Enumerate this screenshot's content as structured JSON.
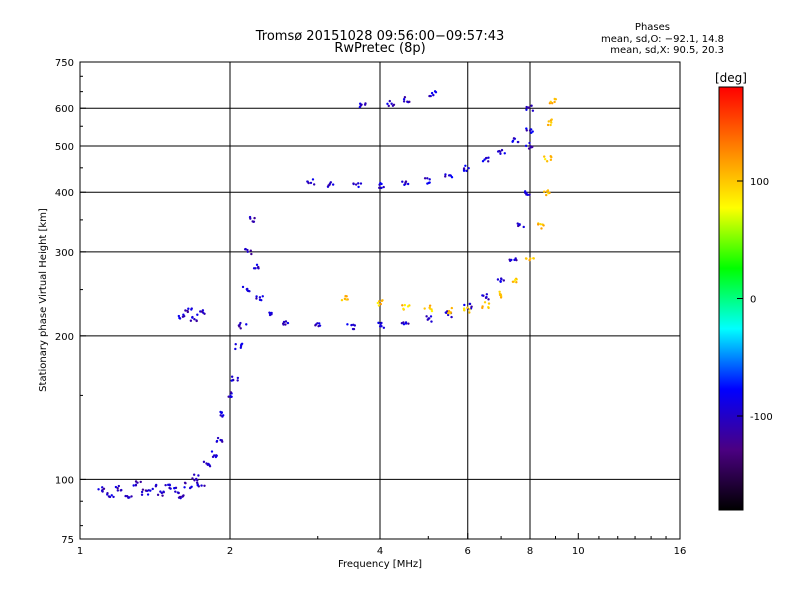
{
  "chart_data": {
    "type": "scatter",
    "title_line1": "Tromsø 20151028 09:56:00−09:57:43",
    "title_line2": "RwPretec (8p)",
    "phases": {
      "title": "Phases",
      "line_o": "mean, sd,O: −92.1, 14.8",
      "line_x": "mean, sd,X:  90.5, 20.3"
    },
    "xlabel": "Frequency [MHz]",
    "ylabel": "Stationary phase Virtual Height [km]",
    "x_scale": "log2",
    "y_scale": "log",
    "xlim": [
      1,
      16
    ],
    "ylim": [
      75,
      750
    ],
    "x_ticks": [
      1,
      2,
      4,
      6,
      8,
      10,
      16
    ],
    "y_ticks": [
      75,
      100,
      200,
      300,
      400,
      500,
      600,
      750
    ],
    "x_grid": [
      2,
      4,
      6,
      8
    ],
    "y_grid": [
      100,
      200,
      300,
      400,
      500,
      600
    ],
    "grid": true,
    "colorbar": {
      "label": "[deg]",
      "range": [
        -180,
        180
      ],
      "ticks": [
        100,
        0,
        -100
      ],
      "colors": [
        "#ff0000",
        "#ff8000",
        "#ffff00",
        "#00ff00",
        "#00ffff",
        "#0000ff",
        "#4b0082",
        "#000000"
      ]
    },
    "series": [
      {
        "points": [
          [
            1.1,
            95
          ],
          [
            1.15,
            93
          ],
          [
            1.2,
            96
          ],
          [
            1.25,
            92
          ],
          [
            1.3,
            98
          ],
          [
            1.35,
            94
          ],
          [
            1.4,
            96
          ],
          [
            1.45,
            93
          ],
          [
            1.5,
            97
          ],
          [
            1.55,
            95
          ],
          [
            1.6,
            92
          ],
          [
            1.65,
            97
          ],
          [
            1.7,
            101
          ],
          [
            1.75,
            97
          ],
          [
            1.8,
            108
          ],
          [
            1.85,
            113
          ],
          [
            1.9,
            121
          ],
          [
            1.95,
            137
          ],
          [
            2.0,
            150
          ],
          [
            2.05,
            162
          ],
          [
            2.08,
            190
          ],
          [
            2.12,
            210
          ],
          [
            2.15,
            250
          ],
          [
            2.18,
            300
          ],
          [
            2.2,
            350
          ],
          [
            2.25,
            280
          ],
          [
            2.3,
            240
          ],
          [
            2.4,
            222
          ],
          [
            2.6,
            212
          ],
          [
            3.0,
            210
          ],
          [
            3.5,
            209
          ],
          [
            4.0,
            210
          ],
          [
            4.5,
            213
          ],
          [
            5.0,
            217
          ],
          [
            5.5,
            222
          ],
          [
            6.0,
            230
          ],
          [
            6.5,
            242
          ],
          [
            7.0,
            260
          ],
          [
            7.4,
            290
          ],
          [
            7.7,
            340
          ],
          [
            7.85,
            400
          ],
          [
            7.95,
            500
          ],
          [
            8.0,
            600
          ]
        ],
        "phase": -100
      },
      {
        "points": [
          [
            2.9,
            420
          ],
          [
            3.2,
            416
          ],
          [
            3.6,
            413
          ],
          [
            4.0,
            412
          ],
          [
            4.5,
            415
          ],
          [
            5.0,
            422
          ],
          [
            5.5,
            434
          ],
          [
            6.0,
            448
          ],
          [
            6.5,
            466
          ],
          [
            7.0,
            488
          ],
          [
            7.5,
            512
          ],
          [
            8.0,
            538
          ]
        ],
        "phase": -95
      },
      {
        "points": [
          [
            3.4,
            240
          ],
          [
            4.0,
            234
          ],
          [
            4.5,
            230
          ],
          [
            5.0,
            228
          ],
          [
            5.5,
            226
          ],
          [
            6.0,
            226
          ],
          [
            6.5,
            232
          ],
          [
            7.0,
            244
          ],
          [
            7.5,
            262
          ],
          [
            8.0,
            290
          ],
          [
            8.4,
            340
          ],
          [
            8.6,
            400
          ],
          [
            8.7,
            470
          ],
          [
            8.8,
            560
          ],
          [
            8.9,
            620
          ]
        ],
        "phase": 100
      },
      {
        "points": [
          [
            1.6,
            220
          ],
          [
            1.65,
            225
          ],
          [
            1.7,
            218
          ],
          [
            1.75,
            223
          ],
          [
            3.7,
            610
          ],
          [
            4.2,
            615
          ],
          [
            4.5,
            625
          ],
          [
            5.1,
            645
          ]
        ],
        "phase": -100
      }
    ]
  }
}
